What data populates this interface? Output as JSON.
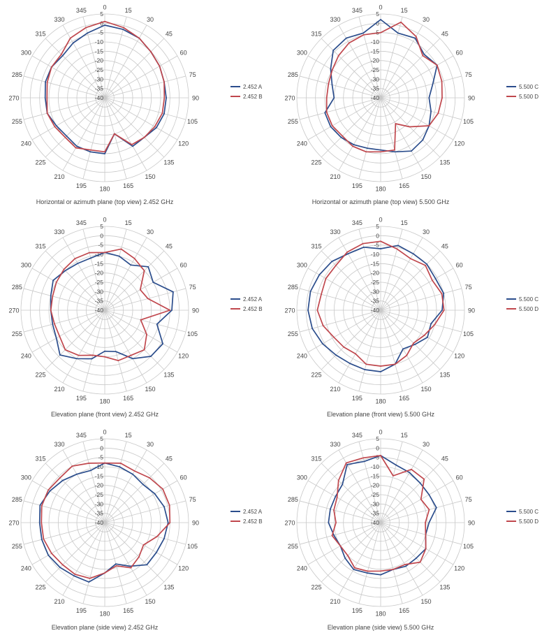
{
  "colors": {
    "blue": "#2b4d8c",
    "red": "#c0474d",
    "grid": "#c8c8c8",
    "text": "#444444"
  },
  "chart_data": [
    {
      "type": "radar",
      "title": "Horizontal or azimuth plane (top view) 2.452 GHz",
      "angles": [
        0,
        15,
        30,
        45,
        60,
        75,
        90,
        105,
        120,
        135,
        150,
        165,
        180,
        195,
        210,
        225,
        240,
        255,
        270,
        285,
        300,
        315,
        330,
        345
      ],
      "rlim": [
        -40,
        5
      ],
      "rticks": [
        5,
        0,
        -5,
        -10,
        -15,
        -20,
        -25,
        -30,
        -35,
        -40
      ],
      "legend_position": "right",
      "series": [
        {
          "name": "2.452 A",
          "color": "#2b4d8c",
          "values": [
            -1,
            -2,
            -3,
            -5,
            -6,
            -7,
            -7,
            -7,
            -8,
            -10,
            -10,
            -20,
            -10,
            -10,
            -10,
            -11,
            -10,
            -8,
            -8,
            -7,
            -7,
            -8,
            -6,
            -4
          ]
        },
        {
          "name": "2.452 B",
          "color": "#c0474d",
          "values": [
            1,
            -1,
            -3,
            -5,
            -6,
            -7,
            -8,
            -8,
            -9,
            -10,
            -11,
            -20,
            -11,
            -11,
            -9,
            -10,
            -9,
            -8,
            -9,
            -8,
            -7,
            -7,
            -3,
            -1
          ]
        }
      ]
    },
    {
      "type": "radar",
      "title": "Horizontal or azimuth plane (top view) 5.500 GHz",
      "angles": [
        0,
        15,
        30,
        45,
        60,
        75,
        90,
        105,
        120,
        135,
        150,
        165,
        180,
        195,
        210,
        225,
        240,
        255,
        270,
        285,
        300,
        315,
        330,
        345
      ],
      "rlim": [
        -40,
        5
      ],
      "rticks": [
        5,
        0,
        -5,
        -10,
        -15,
        -20,
        -25,
        -30,
        -35,
        -40
      ],
      "legend_position": "right",
      "series": [
        {
          "name": "5.500 C",
          "color": "#2b4d8c",
          "values": [
            2,
            -4,
            -3,
            -7,
            -5,
            -11,
            -14,
            -12,
            -10,
            -8,
            -7,
            -10,
            -12,
            -12,
            -11,
            -10,
            -9,
            -9,
            -15,
            -13,
            -9,
            -4,
            -3,
            -4
          ]
        },
        {
          "name": "5.500 D",
          "color": "#c0474d",
          "values": [
            -5,
            2,
            -2,
            -8,
            -5,
            -6,
            -7,
            -8,
            -10,
            -18,
            -24,
            -11,
            -11,
            -10,
            -10,
            -11,
            -10,
            -10,
            -11,
            -11,
            -10,
            -8,
            -6,
            -5
          ]
        }
      ]
    },
    {
      "type": "radar",
      "title": "Elevation plane (front view) 2.452 GHz",
      "angles": [
        0,
        15,
        30,
        45,
        60,
        75,
        90,
        105,
        120,
        135,
        150,
        165,
        180,
        195,
        210,
        225,
        240,
        255,
        270,
        285,
        300,
        315,
        330,
        345
      ],
      "rlim": [
        -40,
        5
      ],
      "rticks": [
        5,
        0,
        -5,
        -10,
        -15,
        -20,
        -25,
        -30,
        -35,
        -40
      ],
      "legend_position": "right",
      "series": [
        {
          "name": "2.452 A",
          "color": "#2b4d8c",
          "values": [
            -9,
            -10,
            -12,
            -7,
            -10,
            -2,
            -4,
            -11,
            -4,
            -5,
            -10,
            -17,
            -18,
            -13,
            -10,
            -6,
            -10,
            -11,
            -11,
            -10,
            -8,
            -10,
            -11,
            -11
          ]
        },
        {
          "name": "2.452 B",
          "color": "#c0474d",
          "values": [
            -9,
            -6,
            -8,
            -10,
            -18,
            -16,
            -5,
            -20,
            -14,
            -10,
            -12,
            -12,
            -15,
            -15,
            -12,
            -10,
            -12,
            -12,
            -11,
            -11,
            -10,
            -9,
            -8,
            -8
          ]
        }
      ]
    },
    {
      "type": "radar",
      "title": "Elevation plane (front view) 5.500 GHz",
      "angles": [
        0,
        15,
        30,
        45,
        60,
        75,
        90,
        105,
        120,
        135,
        150,
        165,
        180,
        195,
        210,
        225,
        240,
        255,
        270,
        285,
        300,
        315,
        330,
        345
      ],
      "rlim": [
        -40,
        5
      ],
      "rticks": [
        5,
        0,
        -5,
        -10,
        -15,
        -20,
        -25,
        -30,
        -35,
        -40
      ],
      "legend_position": "right",
      "series": [
        {
          "name": "5.500 C",
          "color": "#2b4d8c",
          "values": [
            -7,
            -4,
            -5,
            -5,
            -6,
            -5,
            -7,
            -12,
            -11,
            -14,
            -16,
            -10,
            -7,
            -7,
            -7,
            -6,
            -4,
            -2,
            -1,
            -1,
            -2,
            -3,
            -5,
            -5
          ]
        },
        {
          "name": "5.500 D",
          "color": "#c0474d",
          "values": [
            -3,
            -6,
            -8,
            -6,
            -8,
            -6,
            -6,
            -10,
            -13,
            -15,
            -12,
            -10,
            -10,
            -10,
            -13,
            -12,
            -11,
            -8,
            -6,
            -7,
            -6,
            -6,
            -4,
            -3
          ]
        }
      ]
    },
    {
      "type": "radar",
      "title": "Elevation plane (side view) 2.452 GHz",
      "angles": [
        0,
        15,
        30,
        45,
        60,
        75,
        90,
        105,
        120,
        135,
        150,
        165,
        180,
        195,
        210,
        225,
        240,
        255,
        270,
        285,
        300,
        315,
        330,
        345
      ],
      "rlim": [
        -40,
        5
      ],
      "rticks": [
        5,
        0,
        -5,
        -10,
        -15,
        -20,
        -25,
        -30,
        -35,
        -40
      ],
      "legend_position": "right",
      "series": [
        {
          "name": "2.452 A",
          "color": "#2b4d8c",
          "values": [
            -8,
            -9,
            -10,
            -11,
            -9,
            -7,
            -6,
            -7,
            -8,
            -8,
            -13,
            -17,
            -13,
            -7,
            -7,
            -6,
            -5,
            -5,
            -5,
            -4,
            -6,
            -8,
            -10,
            -11
          ]
        },
        {
          "name": "2.452 B",
          "color": "#c0474d",
          "values": [
            -8,
            -7,
            -8,
            -6,
            -4,
            -4,
            -5,
            -11,
            -16,
            -14,
            -12,
            -16,
            -13,
            -9,
            -8,
            -8,
            -7,
            -6,
            -6,
            -5,
            -5,
            -6,
            -5,
            -7
          ]
        }
      ]
    },
    {
      "type": "radar",
      "title": "Elevation plane (side view) 5.500 GHz",
      "angles": [
        0,
        15,
        30,
        45,
        60,
        75,
        90,
        105,
        120,
        135,
        150,
        165,
        180,
        195,
        210,
        225,
        240,
        255,
        270,
        285,
        300,
        315,
        330,
        345
      ],
      "rlim": [
        -40,
        5
      ],
      "rticks": [
        5,
        0,
        -5,
        -10,
        -15,
        -20,
        -25,
        -30,
        -35,
        -40
      ],
      "legend_position": "right",
      "series": [
        {
          "name": "5.500 C",
          "color": "#2b4d8c",
          "values": [
            -4,
            -8,
            -9,
            -10,
            -10,
            -9,
            -14,
            -15,
            -12,
            -13,
            -13,
            -14,
            -12,
            -12,
            -11,
            -13,
            -15,
            -14,
            -12,
            -12,
            -12,
            -11,
            -4,
            -6
          ]
        },
        {
          "name": "5.500 D",
          "color": "#c0474d",
          "values": [
            -4,
            -14,
            -7,
            -7,
            -15,
            -13,
            -16,
            -15,
            -12,
            -10,
            -14,
            -14,
            -14,
            -13,
            -12,
            -15,
            -15,
            -13,
            -16,
            -14,
            -13,
            -8,
            -3,
            -4
          ]
        }
      ]
    }
  ]
}
